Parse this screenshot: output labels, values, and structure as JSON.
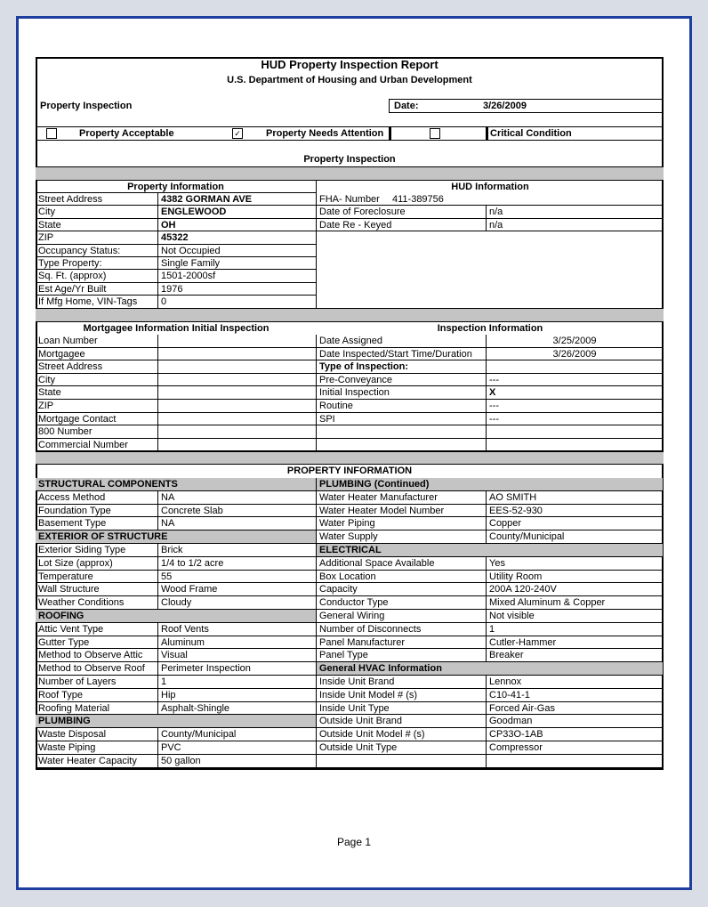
{
  "header": {
    "title": "HUD Property Inspection Report",
    "subtitle": "U.S. Department of Housing and Urban Development",
    "section_label": "Property Inspection",
    "date_label": "Date:",
    "date": "3/26/2009"
  },
  "status": [
    {
      "label": "Property Acceptable",
      "checked": false
    },
    {
      "label": "Property Needs Attention",
      "checked": true
    },
    {
      "label": "Critical Condition",
      "checked": false
    }
  ],
  "section_title": "Property Inspection",
  "property_information": {
    "title": "Property Information",
    "rows": [
      {
        "label": "Street Address",
        "value": "4382 GORMAN AVE"
      },
      {
        "label": "City",
        "value": "ENGLEWOOD"
      },
      {
        "label": "State",
        "value": "OH"
      },
      {
        "label": "ZIP",
        "value": "45322"
      },
      {
        "label": "Occupancy Status:",
        "value": "Not Occupied"
      },
      {
        "label": "Type Property:",
        "value": "Single Family"
      },
      {
        "label": "Sq. Ft. (approx)",
        "value": "1501-2000sf"
      },
      {
        "label": "Est Age/Yr Built",
        "value": "1976"
      },
      {
        "label": "If Mfg Home, VIN-Tags",
        "value": "0"
      }
    ]
  },
  "hud_information": {
    "title": "HUD Information",
    "fha_label": "FHA- Number",
    "fha_number": "411-389756",
    "rows": [
      {
        "label": "Date of Foreclosure",
        "value": "n/a"
      },
      {
        "label": "Date Re - Keyed",
        "value": "n/a"
      }
    ]
  },
  "mortgagee_information": {
    "title": "Mortgagee Information Initial Inspection",
    "rows": [
      {
        "label": "Loan Number"
      },
      {
        "label": "Mortgagee"
      },
      {
        "label": "Street Address"
      },
      {
        "label": "City"
      },
      {
        "label": "State"
      },
      {
        "label": "ZIP"
      },
      {
        "label": "Mortgage Contact"
      },
      {
        "label": "800 Number"
      },
      {
        "label": "Commercial Number"
      }
    ]
  },
  "inspection_information": {
    "title": "Inspection Information",
    "rows": [
      {
        "label": "Date Assigned",
        "value": "3/25/2009"
      },
      {
        "label": "Date Inspected/Start Time/Duration",
        "value": "3/26/2009"
      },
      {
        "heading": "Type of Inspection:"
      },
      {
        "label": "Pre-Conveyance",
        "value": "---"
      },
      {
        "label": "Initial Inspection",
        "value": "X"
      },
      {
        "label": "Routine",
        "value": "---"
      },
      {
        "label": "SPI",
        "value": "---"
      }
    ]
  },
  "details": {
    "title": "PROPERTY INFORMATION",
    "left": [
      {
        "heading": "STRUCTURAL COMPONENTS"
      },
      {
        "label": "Access Method",
        "value": "NA"
      },
      {
        "label": "Foundation Type",
        "value": "Concrete Slab"
      },
      {
        "label": "Basement Type",
        "value": "NA"
      },
      {
        "heading": "EXTERIOR OF STRUCTURE"
      },
      {
        "label": "Exterior Siding Type",
        "value": "Brick"
      },
      {
        "label": "Lot Size (approx)",
        "value": "1/4 to 1/2 acre"
      },
      {
        "label": "Temperature",
        "value": "55"
      },
      {
        "label": "Wall Structure",
        "value": "Wood Frame"
      },
      {
        "label": "Weather Conditions",
        "value": "Cloudy"
      },
      {
        "heading": "ROOFING"
      },
      {
        "label": "Attic Vent Type",
        "value": "Roof Vents"
      },
      {
        "label": "Gutter Type",
        "value": "Aluminum"
      },
      {
        "label": "Method to Observe Attic",
        "value": "Visual"
      },
      {
        "label": "Method to Observe Roof",
        "value": "Perimeter Inspection"
      },
      {
        "label": "Number of Layers",
        "value": "1"
      },
      {
        "label": "Roof Type",
        "value": "Hip"
      },
      {
        "label": "Roofing Material",
        "value": "Asphalt-Shingle"
      },
      {
        "heading": "PLUMBING"
      },
      {
        "label": "Waste Disposal",
        "value": "County/Municipal"
      },
      {
        "label": "Waste Piping",
        "value": "PVC"
      },
      {
        "label": "Water Heater Capacity",
        "value": "50 gallon"
      }
    ],
    "right": [
      {
        "heading": "PLUMBING (Continued)"
      },
      {
        "label": "Water Heater Manufacturer",
        "value": "AO SMITH"
      },
      {
        "label": "Water Heater Model Number",
        "value": "EES-52-930"
      },
      {
        "label": "Water Piping",
        "value": "Copper"
      },
      {
        "label": "Water Supply",
        "value": "County/Municipal"
      },
      {
        "heading": "ELECTRICAL"
      },
      {
        "label": "Additional Space Available",
        "value": "Yes"
      },
      {
        "label": "Box Location",
        "value": "Utility Room"
      },
      {
        "label": "Capacity",
        "value": "200A  120-240V"
      },
      {
        "label": "Conductor Type",
        "value": "Mixed Aluminum & Copper"
      },
      {
        "label": "General Wiring",
        "value": "Not visible"
      },
      {
        "label": "Number of Disconnects",
        "value": "1"
      },
      {
        "label": "Panel Manufacturer",
        "value": "Cutler-Hammer"
      },
      {
        "label": "Panel Type",
        "value": "Breaker"
      },
      {
        "heading": "General HVAC Information"
      },
      {
        "label": "Inside Unit Brand",
        "value": "Lennox"
      },
      {
        "label": "Inside Unit Model # (s)",
        "value": "C10-41-1"
      },
      {
        "label": "Inside Unit Type",
        "value": "Forced Air-Gas"
      },
      {
        "label": "Outside Unit Brand",
        "value": "Goodman"
      },
      {
        "label": "Outside Unit Model # (s)",
        "value": "CP33O-1AB"
      },
      {
        "label": "Outside Unit Type",
        "value": "Compressor"
      }
    ]
  },
  "footer": {
    "page": "Page 1"
  }
}
